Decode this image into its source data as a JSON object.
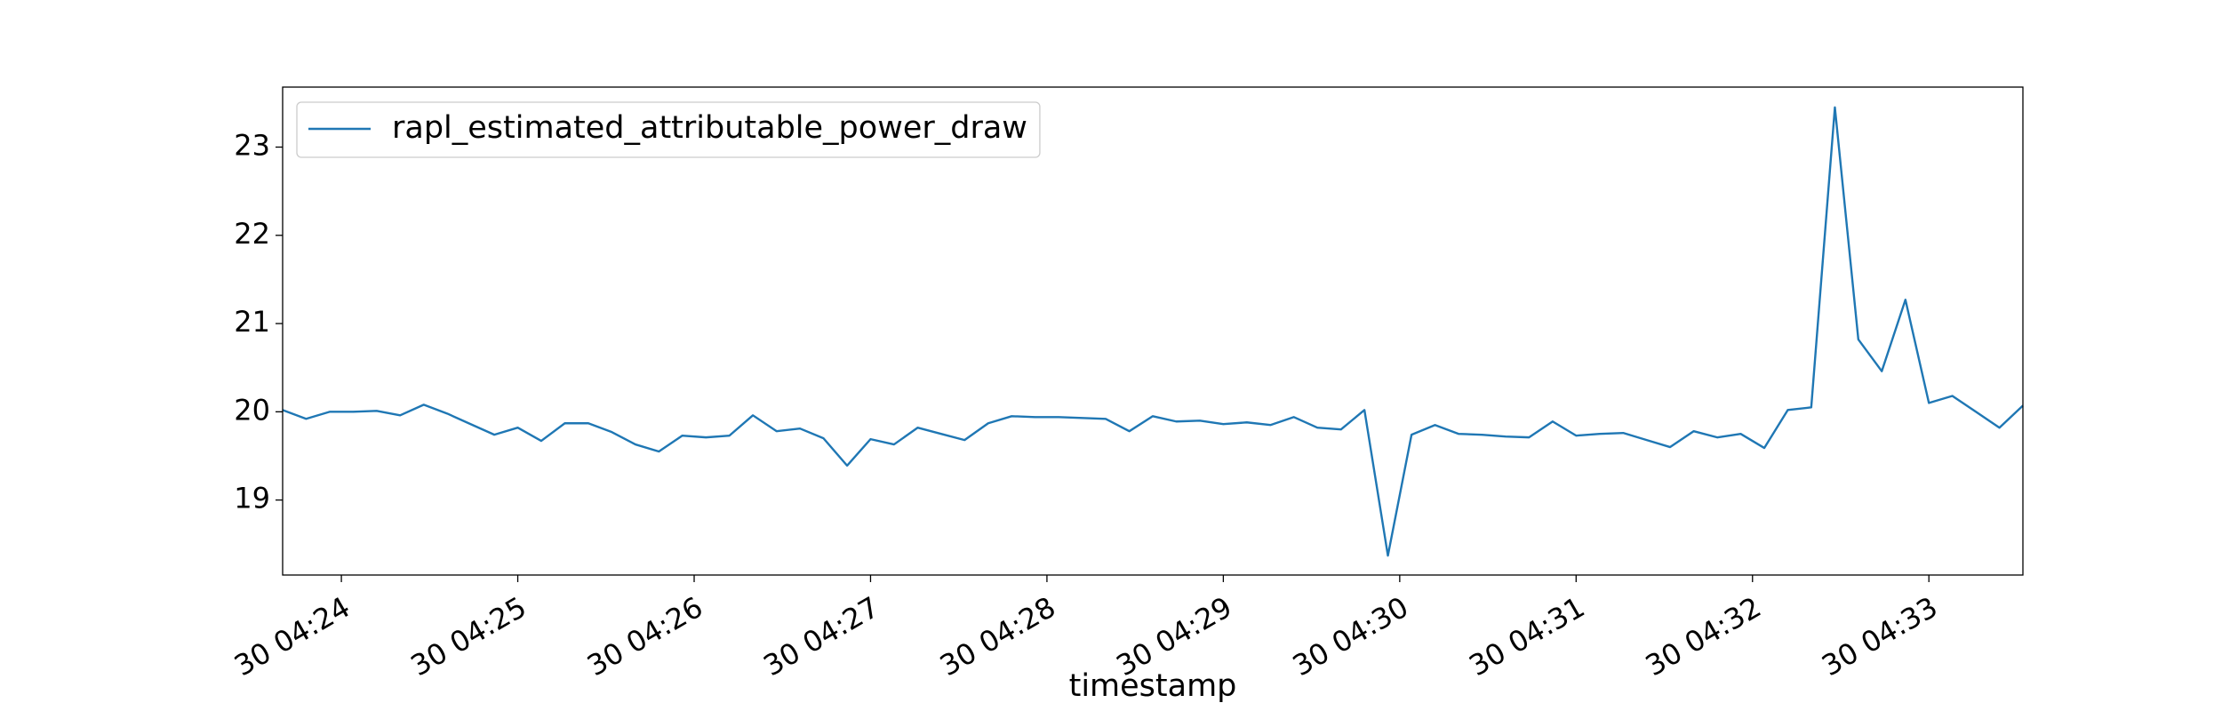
{
  "chart_data": {
    "type": "line",
    "xlabel": "timestamp",
    "x": [
      263.667,
      263.8,
      263.933,
      264.067,
      264.2,
      264.333,
      264.467,
      264.6,
      264.733,
      264.867,
      265,
      265.133,
      265.267,
      265.4,
      265.533,
      265.667,
      265.8,
      265.933,
      266.067,
      266.2,
      266.333,
      266.467,
      266.6,
      266.733,
      266.867,
      267,
      267.133,
      267.267,
      267.4,
      267.533,
      267.667,
      267.8,
      267.933,
      268.067,
      268.2,
      268.333,
      268.467,
      268.6,
      268.733,
      268.867,
      269,
      269.133,
      269.267,
      269.4,
      269.533,
      269.667,
      269.8,
      269.933,
      270.067,
      270.2,
      270.333,
      270.467,
      270.6,
      270.733,
      270.867,
      271,
      271.133,
      271.267,
      271.4,
      271.533,
      271.667,
      271.8,
      271.933,
      272.067,
      272.2,
      272.333,
      272.467,
      272.6,
      272.733,
      272.867,
      273,
      273.133,
      273.267,
      273.4,
      273.533
    ],
    "series": [
      {
        "name": "rapl_estimated_attributable_power_draw",
        "color": "#1f77b4",
        "values": [
          20.02,
          19.92,
          20.0,
          20.0,
          20.01,
          19.96,
          20.08,
          19.98,
          19.86,
          19.74,
          19.82,
          19.67,
          19.87,
          19.87,
          19.77,
          19.63,
          19.55,
          19.73,
          19.71,
          19.73,
          19.96,
          19.78,
          19.81,
          19.7,
          19.39,
          19.69,
          19.63,
          19.82,
          19.75,
          19.68,
          19.87,
          19.95,
          19.94,
          19.94,
          19.93,
          19.92,
          19.78,
          19.95,
          19.89,
          19.9,
          19.86,
          19.88,
          19.85,
          19.94,
          19.82,
          19.8,
          20.02,
          18.37,
          19.74,
          19.85,
          19.75,
          19.74,
          19.72,
          19.71,
          19.89,
          19.73,
          19.75,
          19.76,
          19.68,
          19.6,
          19.78,
          19.71,
          19.75,
          19.59,
          20.02,
          20.05,
          23.45,
          20.82,
          20.46,
          21.27,
          20.1,
          20.18,
          20.0,
          19.82,
          20.07
        ]
      }
    ],
    "xlim": [
      263.667,
      273.533
    ],
    "xticks": [
      {
        "value": 264,
        "label": "30 04:24"
      },
      {
        "value": 265,
        "label": "30 04:25"
      },
      {
        "value": 266,
        "label": "30 04:26"
      },
      {
        "value": 267,
        "label": "30 04:27"
      },
      {
        "value": 268,
        "label": "30 04:28"
      },
      {
        "value": 269,
        "label": "30 04:29"
      },
      {
        "value": 270,
        "label": "30 04:30"
      },
      {
        "value": 271,
        "label": "30 04:31"
      },
      {
        "value": 272,
        "label": "30 04:32"
      },
      {
        "value": 273,
        "label": "30 04:33"
      }
    ],
    "ylim": [
      18.15,
      23.68
    ],
    "yticks": [
      19,
      20,
      21,
      22,
      23
    ],
    "legend": "upper left"
  }
}
